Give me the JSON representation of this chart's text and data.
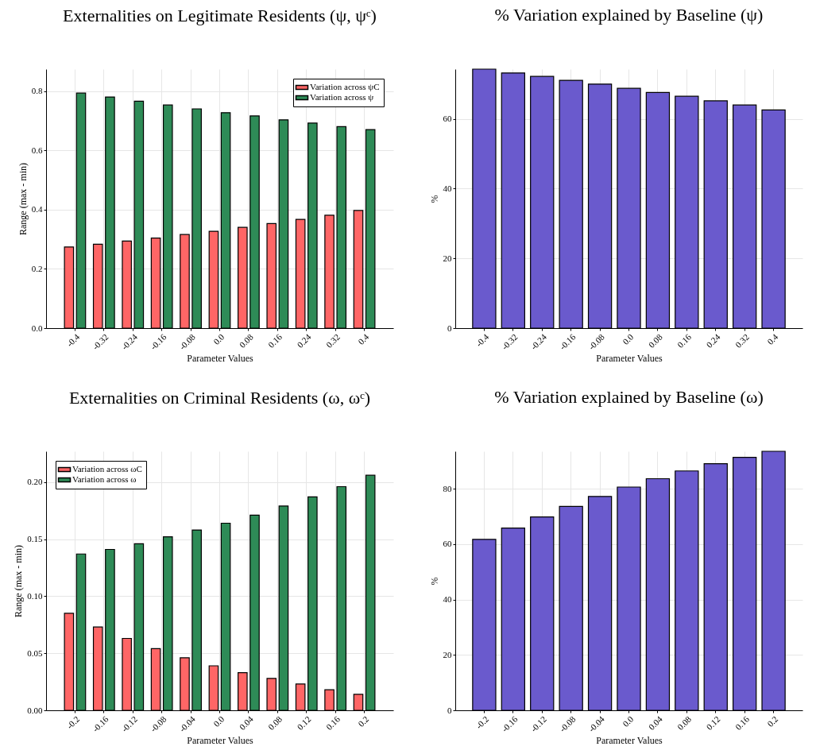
{
  "chart_data": [
    {
      "type": "bar",
      "title": "Externalities on Legitimate Residents (ψ, ψᶜ)",
      "xlabel": "Parameter Values",
      "ylabel": "Range (max - min)",
      "categories": [
        "-0.4",
        "-0.32",
        "-0.24",
        "-0.16",
        "-0.08",
        "0.0",
        "0.08",
        "0.16",
        "0.24",
        "0.32",
        "0.4"
      ],
      "series": [
        {
          "name": "Variation across ψC",
          "color": "#ff6666",
          "values": [
            0.274,
            0.283,
            0.294,
            0.304,
            0.316,
            0.327,
            0.34,
            0.353,
            0.367,
            0.381,
            0.397
          ]
        },
        {
          "name": "Variation across ψ",
          "color": "#2e8b57",
          "values": [
            0.793,
            0.78,
            0.766,
            0.753,
            0.74,
            0.727,
            0.716,
            0.703,
            0.692,
            0.68,
            0.67
          ]
        }
      ],
      "ylim": [
        0,
        0.874
      ],
      "yticks": [
        {
          "value": 0,
          "label": "0.0"
        },
        0.2,
        0.4,
        0.6,
        0.8
      ],
      "grid": true,
      "legend": "top right"
    },
    {
      "type": "bar",
      "title": "% Variation explained by Baseline (ψ)",
      "xlabel": "Parameter Values",
      "ylabel": "%",
      "categories": [
        "-0.4",
        "-0.32",
        "-0.24",
        "-0.16",
        "-0.08",
        "0.0",
        "0.08",
        "0.16",
        "0.24",
        "0.32",
        "0.4"
      ],
      "series": [
        {
          "color": "#6a5acd",
          "values": [
            74.3,
            73.2,
            72.2,
            71.1,
            70.0,
            68.8,
            67.6,
            66.5,
            65.2,
            64.0,
            62.6
          ]
        }
      ],
      "ylim": [
        0,
        74.3
      ],
      "yticks": [
        0,
        20,
        40,
        60
      ],
      "grid": true
    },
    {
      "type": "bar",
      "title": "Externalities on Criminal Residents (ω, ωᶜ)",
      "xlabel": "Parameter Values",
      "ylabel": "Range (max - min)",
      "categories": [
        "-0.2",
        "-0.16",
        "-0.12",
        "-0.08",
        "-0.04",
        "0.0",
        "0.04",
        "0.08",
        "0.12",
        "0.16",
        "0.2"
      ],
      "series": [
        {
          "name": "Variation across ωC",
          "color": "#ff6666",
          "values": [
            0.085,
            0.073,
            0.063,
            0.054,
            0.046,
            0.039,
            0.033,
            0.028,
            0.023,
            0.018,
            0.014
          ]
        },
        {
          "name": "Variation across ω",
          "color": "#2e8b57",
          "values": [
            0.137,
            0.141,
            0.146,
            0.152,
            0.158,
            0.164,
            0.171,
            0.179,
            0.187,
            0.196,
            0.206
          ]
        }
      ],
      "ylim": [
        0,
        0.227
      ],
      "yticks": [
        {
          "value": 0,
          "label": "0.00"
        },
        0.05,
        {
          "value": 0.1,
          "label": "0.10"
        },
        0.15,
        {
          "value": 0.2,
          "label": "0.20"
        }
      ],
      "grid": true,
      "legend": "top left"
    },
    {
      "type": "bar",
      "title": "% Variation explained by Baseline (ω)",
      "xlabel": "Parameter Values",
      "ylabel": "%",
      "categories": [
        "-0.2",
        "-0.16",
        "-0.12",
        "-0.08",
        "-0.04",
        "0.0",
        "0.04",
        "0.08",
        "0.12",
        "0.16",
        "0.2"
      ],
      "series": [
        {
          "color": "#6a5acd",
          "values": [
            61.7,
            65.8,
            69.8,
            73.6,
            77.2,
            80.6,
            83.6,
            86.4,
            89.0,
            91.3,
            93.5
          ]
        }
      ],
      "ylim": [
        0,
        93.5
      ],
      "yticks": [
        0,
        20,
        40,
        60,
        80
      ],
      "grid": true
    }
  ]
}
